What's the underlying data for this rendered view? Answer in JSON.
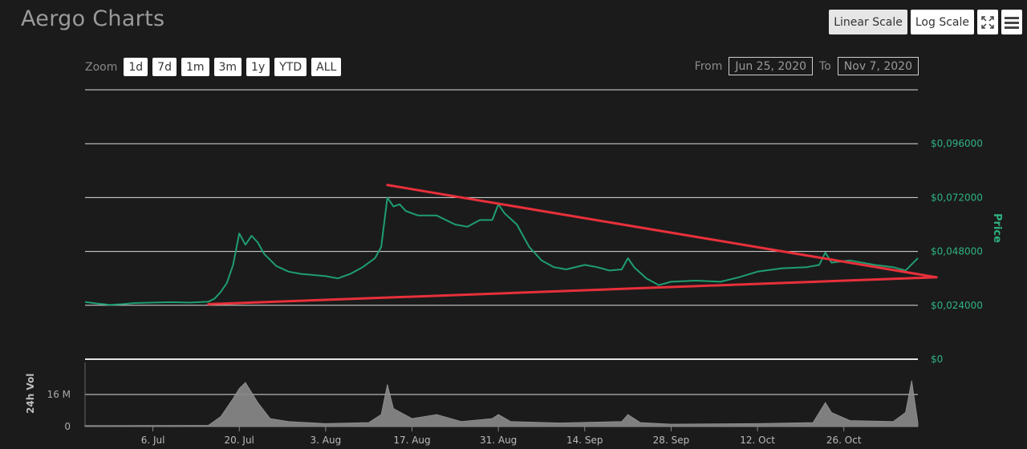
{
  "header": {
    "title": "Aergo Charts",
    "linear_label": "Linear Scale",
    "log_label": "Log Scale",
    "fullscreen_icon": "fullscreen-icon",
    "menu_icon": "hamburger-menu-icon"
  },
  "toolbar": {
    "zoom_label": "Zoom",
    "zoom_buttons": [
      "1d",
      "7d",
      "1m",
      "3m",
      "1y",
      "YTD",
      "ALL"
    ],
    "from_label": "From",
    "from_value": "Jun 25, 2020",
    "to_label": "To",
    "to_value": "Nov 7, 2020"
  },
  "colors": {
    "background": "#1b1b1c",
    "price_line": "#1f9e6f",
    "price_axis": "#2fb37f",
    "volume_fill": "#8a8a8a",
    "trendline": "#e8303a",
    "grid": "#dddddd"
  },
  "chart_data": [
    {
      "type": "line",
      "ylabel": "Price",
      "y_ticks": [
        "$0",
        "$0,024000",
        "$0,048000",
        "$0,072000",
        "$0,096000"
      ],
      "ylim": [
        0,
        0.12
      ],
      "x_ticks": [
        "6. Jul",
        "20. Jul",
        "3. Aug",
        "17. Aug",
        "31. Aug",
        "14. Sep",
        "28. Sep",
        "12. Oct",
        "26. Oct"
      ],
      "x_tick_dates": [
        "2020-07-06",
        "2020-07-20",
        "2020-08-03",
        "2020-08-17",
        "2020-08-31",
        "2020-09-14",
        "2020-09-28",
        "2020-10-12",
        "2020-10-26"
      ],
      "xlim": [
        "2020-06-25",
        "2020-11-07"
      ],
      "series": [
        {
          "values": [
            [
              "2020-06-25",
              0.0255
            ],
            [
              "2020-06-27",
              0.0248
            ],
            [
              "2020-06-29",
              0.0242
            ],
            [
              "2020-07-01",
              0.0245
            ],
            [
              "2020-07-03",
              0.025
            ],
            [
              "2020-07-06",
              0.0252
            ],
            [
              "2020-07-09",
              0.0254
            ],
            [
              "2020-07-12",
              0.0252
            ],
            [
              "2020-07-15",
              0.0256
            ],
            [
              "2020-07-16",
              0.027
            ],
            [
              "2020-07-17",
              0.03
            ],
            [
              "2020-07-18",
              0.034
            ],
            [
              "2020-07-19",
              0.042
            ],
            [
              "2020-07-20",
              0.056
            ],
            [
              "2020-07-21",
              0.051
            ],
            [
              "2020-07-22",
              0.055
            ],
            [
              "2020-07-23",
              0.052
            ],
            [
              "2020-07-24",
              0.047
            ],
            [
              "2020-07-26",
              0.0415
            ],
            [
              "2020-07-28",
              0.039
            ],
            [
              "2020-07-30",
              0.038
            ],
            [
              "2020-08-01",
              0.0375
            ],
            [
              "2020-08-03",
              0.037
            ],
            [
              "2020-08-05",
              0.036
            ],
            [
              "2020-08-07",
              0.038
            ],
            [
              "2020-08-09",
              0.041
            ],
            [
              "2020-08-11",
              0.045
            ],
            [
              "2020-08-12",
              0.05
            ],
            [
              "2020-08-13",
              0.072
            ],
            [
              "2020-08-14",
              0.068
            ],
            [
              "2020-08-15",
              0.069
            ],
            [
              "2020-08-16",
              0.066
            ],
            [
              "2020-08-18",
              0.064
            ],
            [
              "2020-08-21",
              0.064
            ],
            [
              "2020-08-24",
              0.06
            ],
            [
              "2020-08-26",
              0.059
            ],
            [
              "2020-08-28",
              0.062
            ],
            [
              "2020-08-30",
              0.062
            ],
            [
              "2020-08-31",
              0.069
            ],
            [
              "2020-09-01",
              0.065
            ],
            [
              "2020-09-03",
              0.06
            ],
            [
              "2020-09-05",
              0.05
            ],
            [
              "2020-09-07",
              0.044
            ],
            [
              "2020-09-09",
              0.041
            ],
            [
              "2020-09-11",
              0.04
            ],
            [
              "2020-09-14",
              0.042
            ],
            [
              "2020-09-16",
              0.041
            ],
            [
              "2020-09-18",
              0.0395
            ],
            [
              "2020-09-20",
              0.04
            ],
            [
              "2020-09-21",
              0.045
            ],
            [
              "2020-09-22",
              0.041
            ],
            [
              "2020-09-24",
              0.036
            ],
            [
              "2020-09-26",
              0.033
            ],
            [
              "2020-09-28",
              0.0345
            ],
            [
              "2020-10-02",
              0.035
            ],
            [
              "2020-10-06",
              0.0345
            ],
            [
              "2020-10-09",
              0.0365
            ],
            [
              "2020-10-12",
              0.039
            ],
            [
              "2020-10-16",
              0.0405
            ],
            [
              "2020-10-20",
              0.041
            ],
            [
              "2020-10-22",
              0.042
            ],
            [
              "2020-10-23",
              0.0475
            ],
            [
              "2020-10-24",
              0.043
            ],
            [
              "2020-10-27",
              0.044
            ],
            [
              "2020-10-31",
              0.042
            ],
            [
              "2020-11-03",
              0.041
            ],
            [
              "2020-11-05",
              0.0395
            ],
            [
              "2020-11-07",
              0.045
            ]
          ]
        }
      ],
      "trendlines": [
        {
          "from": [
            "2020-08-13",
            0.0776
          ],
          "to": [
            "2020-11-10",
            0.0365
          ]
        },
        {
          "from": [
            "2020-07-15",
            0.0245
          ],
          "to": [
            "2020-11-10",
            0.0365
          ]
        }
      ]
    },
    {
      "type": "area",
      "ylabel": "24h Vol",
      "y_ticks": [
        "0",
        "16 M"
      ],
      "ylim": [
        0,
        32000000
      ],
      "series": [
        {
          "values": [
            [
              "2020-06-25",
              500000
            ],
            [
              "2020-07-15",
              600000
            ],
            [
              "2020-07-17",
              5000000
            ],
            [
              "2020-07-19",
              14000000
            ],
            [
              "2020-07-20",
              19000000
            ],
            [
              "2020-07-21",
              22000000
            ],
            [
              "2020-07-23",
              12000000
            ],
            [
              "2020-07-25",
              4000000
            ],
            [
              "2020-07-28",
              2500000
            ],
            [
              "2020-08-03",
              1500000
            ],
            [
              "2020-08-10",
              2000000
            ],
            [
              "2020-08-12",
              6000000
            ],
            [
              "2020-08-13",
              21000000
            ],
            [
              "2020-08-14",
              9000000
            ],
            [
              "2020-08-17",
              4000000
            ],
            [
              "2020-08-21",
              6000000
            ],
            [
              "2020-08-25",
              2500000
            ],
            [
              "2020-08-30",
              4000000
            ],
            [
              "2020-08-31",
              6000000
            ],
            [
              "2020-09-02",
              2500000
            ],
            [
              "2020-09-10",
              1800000
            ],
            [
              "2020-09-20",
              2500000
            ],
            [
              "2020-09-21",
              6000000
            ],
            [
              "2020-09-23",
              2000000
            ],
            [
              "2020-09-28",
              1200000
            ],
            [
              "2020-10-12",
              1500000
            ],
            [
              "2020-10-21",
              2000000
            ],
            [
              "2020-10-23",
              12000000
            ],
            [
              "2020-10-24",
              7000000
            ],
            [
              "2020-10-27",
              3000000
            ],
            [
              "2020-11-03",
              2500000
            ],
            [
              "2020-11-05",
              7000000
            ],
            [
              "2020-11-06",
              23000000
            ],
            [
              "2020-11-07",
              2000000
            ]
          ]
        }
      ]
    }
  ]
}
